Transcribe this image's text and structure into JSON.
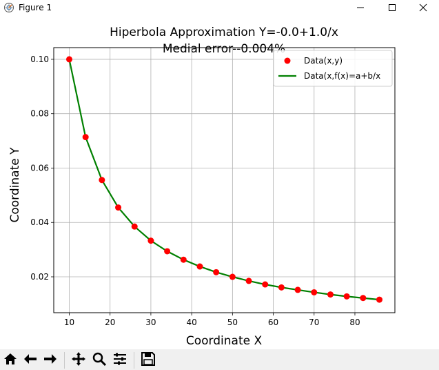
{
  "window": {
    "title": "Figure 1",
    "icons": [
      "figure-app-icon",
      "minimize-icon",
      "maximize-icon",
      "close-icon"
    ]
  },
  "toolbar": {
    "icons": [
      "home-icon",
      "back-arrow-icon",
      "forward-arrow-icon",
      "pan-icon",
      "zoom-icon",
      "configure-subplots-icon",
      "save-icon"
    ]
  },
  "chart_data": {
    "type": "line",
    "title": "Hiperbola Approximation Y=-0.0+1.0/x",
    "subtitle": "Medial error--0.004%",
    "xlabel": "Coordinate X",
    "ylabel": "Coordinate Y",
    "xlim": [
      6.2,
      89.8
    ],
    "ylim": [
      0.0068,
      0.1043
    ],
    "xticks": [
      10,
      20,
      30,
      40,
      50,
      60,
      70,
      80
    ],
    "xtick_labels": [
      "10",
      "20",
      "30",
      "40",
      "50",
      "60",
      "70",
      "80"
    ],
    "yticks": [
      0.02,
      0.04,
      0.06,
      0.08,
      0.1
    ],
    "ytick_labels": [
      "0.02",
      "0.04",
      "0.06",
      "0.08",
      "0.10"
    ],
    "grid": true,
    "legend_position": "top-right",
    "x": [
      10,
      14,
      18,
      22,
      26,
      30,
      34,
      38,
      42,
      46,
      50,
      54,
      58,
      62,
      66,
      70,
      74,
      78,
      82,
      86
    ],
    "series": [
      {
        "name": "Data(x,y)",
        "style": "markers",
        "color": "#ff0000",
        "values": [
          0.1,
          0.0714,
          0.0556,
          0.0455,
          0.0385,
          0.0333,
          0.0294,
          0.0263,
          0.0238,
          0.0217,
          0.02,
          0.0185,
          0.0172,
          0.0161,
          0.0152,
          0.0143,
          0.0135,
          0.0128,
          0.0122,
          0.0116
        ]
      },
      {
        "name": "Data(x,f(x)=a+b/x",
        "style": "line",
        "color": "#008000",
        "values": [
          0.1,
          0.0714,
          0.0556,
          0.0455,
          0.0385,
          0.0333,
          0.0294,
          0.0263,
          0.0238,
          0.0217,
          0.02,
          0.0185,
          0.0172,
          0.0161,
          0.0152,
          0.0143,
          0.0135,
          0.0128,
          0.0122,
          0.0116
        ]
      }
    ]
  }
}
